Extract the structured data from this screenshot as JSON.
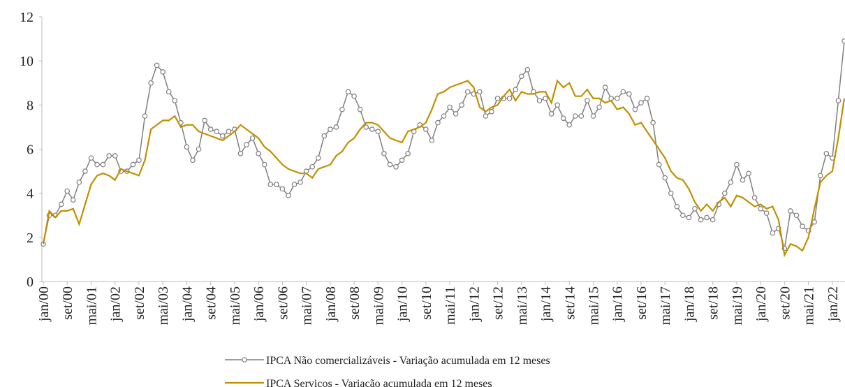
{
  "chart_data": {
    "type": "line",
    "categories": [
      "jan/00",
      null,
      null,
      null,
      "set/00",
      null,
      null,
      null,
      "mai/01",
      null,
      null,
      null,
      "jan/02",
      null,
      null,
      null,
      "set/02",
      null,
      null,
      null,
      "mai/03",
      null,
      null,
      null,
      "jan/04",
      null,
      null,
      null,
      "set/04",
      null,
      null,
      null,
      "mai/05",
      null,
      null,
      null,
      "jan/06",
      null,
      null,
      null,
      "set/06",
      null,
      null,
      null,
      "mai/07",
      null,
      null,
      null,
      "jan/08",
      null,
      null,
      null,
      "set/08",
      null,
      null,
      null,
      "mai/09",
      null,
      null,
      null,
      "jan/10",
      null,
      null,
      null,
      "set/10",
      null,
      null,
      null,
      "mai/11",
      null,
      null,
      null,
      "jan/12",
      null,
      null,
      null,
      "set/12",
      null,
      null,
      null,
      "mai/13",
      null,
      null,
      null,
      "jan/14",
      null,
      null,
      null,
      "set/14",
      null,
      null,
      null,
      "mai/15",
      null,
      null,
      null,
      "jan/16",
      null,
      null,
      null,
      "set/16",
      null,
      null,
      null,
      "mai/17",
      null,
      null,
      null,
      "jan/18",
      null,
      null,
      null,
      "set/18",
      null,
      null,
      null,
      "mai/19",
      null,
      null,
      null,
      "jan/20",
      null,
      null,
      null,
      "set/20",
      null,
      null,
      null,
      "mai/21",
      null,
      null,
      null,
      "jan/22",
      null,
      null
    ],
    "series": [
      {
        "name": "IPCA Não comercializáveis - Variação acumulada em 12 meses",
        "color": "#7f7f7f",
        "markers": true,
        "values": [
          1.7,
          3.0,
          3.0,
          3.5,
          4.1,
          3.7,
          4.5,
          5.0,
          5.6,
          5.3,
          5.3,
          5.7,
          5.7,
          5.0,
          5.0,
          5.3,
          5.5,
          7.5,
          9.0,
          9.8,
          9.5,
          8.6,
          8.2,
          7.2,
          6.1,
          5.5,
          6.0,
          7.3,
          6.9,
          6.8,
          6.6,
          6.8,
          6.9,
          5.8,
          6.2,
          6.5,
          5.8,
          5.3,
          4.4,
          4.4,
          4.2,
          3.9,
          4.4,
          4.5,
          5.0,
          5.2,
          5.6,
          6.6,
          6.9,
          7.0,
          7.8,
          8.6,
          8.4,
          7.8,
          7.0,
          6.9,
          6.8,
          5.8,
          5.3,
          5.2,
          5.5,
          5.8,
          6.8,
          7.1,
          6.9,
          6.4,
          7.2,
          7.5,
          7.9,
          7.6,
          8.0,
          8.6,
          8.5,
          8.6,
          7.5,
          7.7,
          8.3,
          8.3,
          8.3,
          8.7,
          9.3,
          9.6,
          8.6,
          8.2,
          8.3,
          7.6,
          8.0,
          7.4,
          7.1,
          7.5,
          7.5,
          8.2,
          7.5,
          7.9,
          8.8,
          8.3,
          8.3,
          8.6,
          8.5,
          7.8,
          8.1,
          8.3,
          7.2,
          5.3,
          4.7,
          4.0,
          3.4,
          3.0,
          2.9,
          3.3,
          2.8,
          2.9,
          2.8,
          3.5,
          4.0,
          4.5,
          5.3,
          4.6,
          4.9,
          3.8,
          3.3,
          3.1,
          2.2,
          2.4,
          1.5,
          3.2,
          3.0,
          2.5,
          2.3,
          2.7,
          4.8,
          5.8,
          5.6,
          8.2,
          10.9
        ]
      },
      {
        "name": "IPCA Servicos - Variação acumulada em 12 meses",
        "color": "#bf9000",
        "markers": false,
        "values": [
          1.7,
          3.2,
          2.9,
          3.2,
          3.2,
          3.3,
          2.6,
          3.5,
          4.4,
          4.8,
          4.9,
          4.8,
          4.6,
          5.1,
          5.0,
          4.9,
          4.8,
          5.5,
          6.9,
          7.1,
          7.3,
          7.3,
          7.5,
          7.0,
          7.1,
          7.1,
          6.8,
          6.7,
          6.6,
          6.5,
          6.4,
          6.6,
          6.8,
          7.1,
          6.9,
          6.7,
          6.5,
          6.1,
          5.9,
          5.6,
          5.3,
          5.1,
          5.0,
          4.9,
          4.9,
          4.7,
          5.1,
          5.2,
          5.3,
          5.7,
          5.9,
          6.3,
          6.5,
          6.9,
          7.2,
          7.2,
          7.1,
          6.8,
          6.5,
          6.4,
          6.3,
          6.8,
          6.9,
          7.0,
          7.2,
          7.8,
          8.5,
          8.6,
          8.8,
          8.9,
          9.0,
          9.1,
          8.8,
          7.9,
          7.7,
          7.9,
          8.0,
          8.4,
          8.7,
          8.2,
          8.6,
          8.5,
          8.5,
          8.6,
          8.6,
          8.1,
          9.1,
          8.8,
          9.0,
          8.4,
          8.4,
          8.7,
          8.3,
          8.3,
          8.1,
          8.2,
          7.8,
          7.9,
          7.6,
          7.1,
          7.2,
          6.8,
          6.4,
          6.0,
          5.6,
          5.0,
          4.7,
          4.6,
          4.2,
          3.6,
          3.2,
          3.5,
          3.2,
          3.6,
          3.8,
          3.4,
          3.9,
          3.8,
          3.6,
          3.4,
          3.5,
          3.3,
          3.4,
          2.8,
          1.2,
          1.7,
          1.6,
          1.4,
          2.0,
          3.3,
          4.5,
          4.8,
          5.0,
          6.5,
          8.3
        ]
      }
    ],
    "ylim": [
      0,
      12
    ],
    "yticks": [
      0,
      2,
      4,
      6,
      8,
      10,
      12
    ],
    "grid": false,
    "legend": "bottom"
  }
}
